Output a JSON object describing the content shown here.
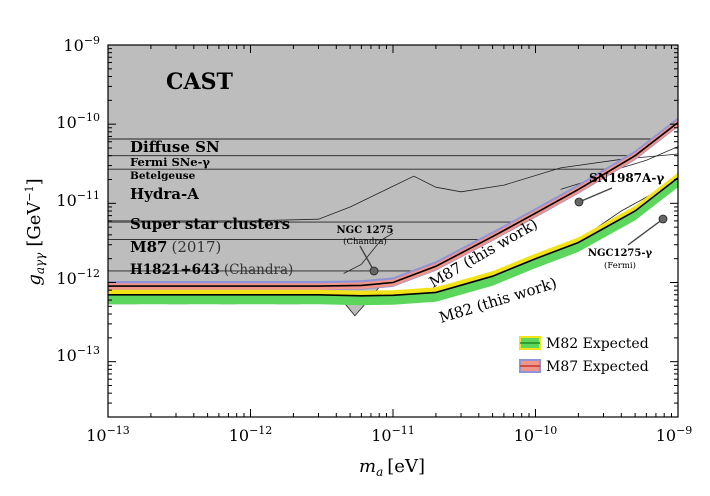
{
  "chart_data": {
    "type": "line",
    "xscale": "log",
    "yscale": "log",
    "xlim": [
      1e-13,
      1e-09
    ],
    "ylim": [
      2e-14,
      1e-09
    ],
    "xlabel_main": "m",
    "xlabel_sub": "a",
    "xlabel_unit": "[eV]",
    "ylabel_main": "g",
    "ylabel_sub": "aγγ",
    "ylabel_unit": "[GeV",
    "ylabel_unit_exp": "−1",
    "ylabel_unit_close": "]",
    "x_ticks": [
      {
        "base": "10",
        "exp": "−13",
        "value": 1e-13
      },
      {
        "base": "10",
        "exp": "−12",
        "value": 1e-12
      },
      {
        "base": "10",
        "exp": "−11",
        "value": 1e-11
      },
      {
        "base": "10",
        "exp": "−10",
        "value": 1e-10
      },
      {
        "base": "10",
        "exp": "−9",
        "value": 1e-09
      }
    ],
    "y_ticks": [
      {
        "base": "10",
        "exp": "−13",
        "value": 1e-13
      },
      {
        "base": "10",
        "exp": "−12",
        "value": 1e-12
      },
      {
        "base": "10",
        "exp": "−11",
        "value": 1e-11
      },
      {
        "base": "10",
        "exp": "−10",
        "value": 1e-10
      },
      {
        "base": "10",
        "exp": "−9",
        "value": 1e-09
      }
    ],
    "excluded_region_color": "#bdbdbd",
    "region_labels": {
      "cast": "CAST",
      "diffuse_sn": "Diffuse SN",
      "fermi_sne": "Fermi SNe-γ",
      "betelgeuse": "Betelgeuse",
      "hydra_a": "Hydra-A",
      "super_star_clusters": "Super star clusters",
      "m87_2017": "M87",
      "m87_2017_year": "(2017)",
      "h1821": "H1821+643",
      "h1821_tag": "(Chandra)",
      "ngc1275": "NGC 1275",
      "ngc1275_tag": "(Chandra)",
      "sn1987a": "SN1987A-γ",
      "ngc1275_fermi": "NGC1275-γ",
      "ngc1275_fermi_tag": "(Fermi)"
    },
    "horizontal_limits": [
      {
        "name": "Diffuse SN",
        "g": 6.5e-11
      },
      {
        "name": "Fermi SNe-γ",
        "g": 4e-11
      },
      {
        "name": "Betelgeuse",
        "g": 2.7e-11
      },
      {
        "name": "Super star clusters",
        "g": 5.8e-12
      },
      {
        "name": "M87 (2017)",
        "g": 3.5e-12
      },
      {
        "name": "H1821+643 (Chandra)",
        "g": 1.4e-12
      }
    ],
    "series": [
      {
        "name": "M87 (this work)",
        "color": "#c0392b",
        "band_color": "#f1948a",
        "band_edge_color": "#8e94d6",
        "x": [
          1e-13,
          3e-13,
          1e-12,
          3e-12,
          6e-12,
          1e-11,
          2e-11,
          5e-11,
          1e-10,
          2e-10,
          5e-10,
          1e-09
        ],
        "y": [
          9e-13,
          9e-13,
          9e-13,
          9e-13,
          9.2e-13,
          1e-12,
          1.6e-12,
          3.8e-12,
          7.5e-12,
          1.5e-11,
          4e-11,
          1.05e-10
        ]
      },
      {
        "name": "M82 (this work)",
        "color": "#228b22",
        "band_color": "#5cd65c",
        "band_edge_color": "#f2e318",
        "x": [
          1e-13,
          3e-13,
          1e-12,
          3e-12,
          6e-12,
          1e-11,
          2e-11,
          5e-11,
          1e-10,
          2e-10,
          5e-10,
          1e-09
        ],
        "y": [
          7e-13,
          7e-13,
          7e-13,
          7e-13,
          6.8e-13,
          6.9e-13,
          7.5e-13,
          1.2e-12,
          2e-12,
          3.2e-12,
          8e-12,
          2.1e-11
        ]
      }
    ],
    "legend": [
      {
        "label": "M82 Expected",
        "fill": "#5cd65c",
        "edge": "#f2e318",
        "line": "#228b22"
      },
      {
        "label": "M87 Expected",
        "fill": "#f1948a",
        "edge": "#8e94d6",
        "line": "#c0392b"
      }
    ]
  }
}
